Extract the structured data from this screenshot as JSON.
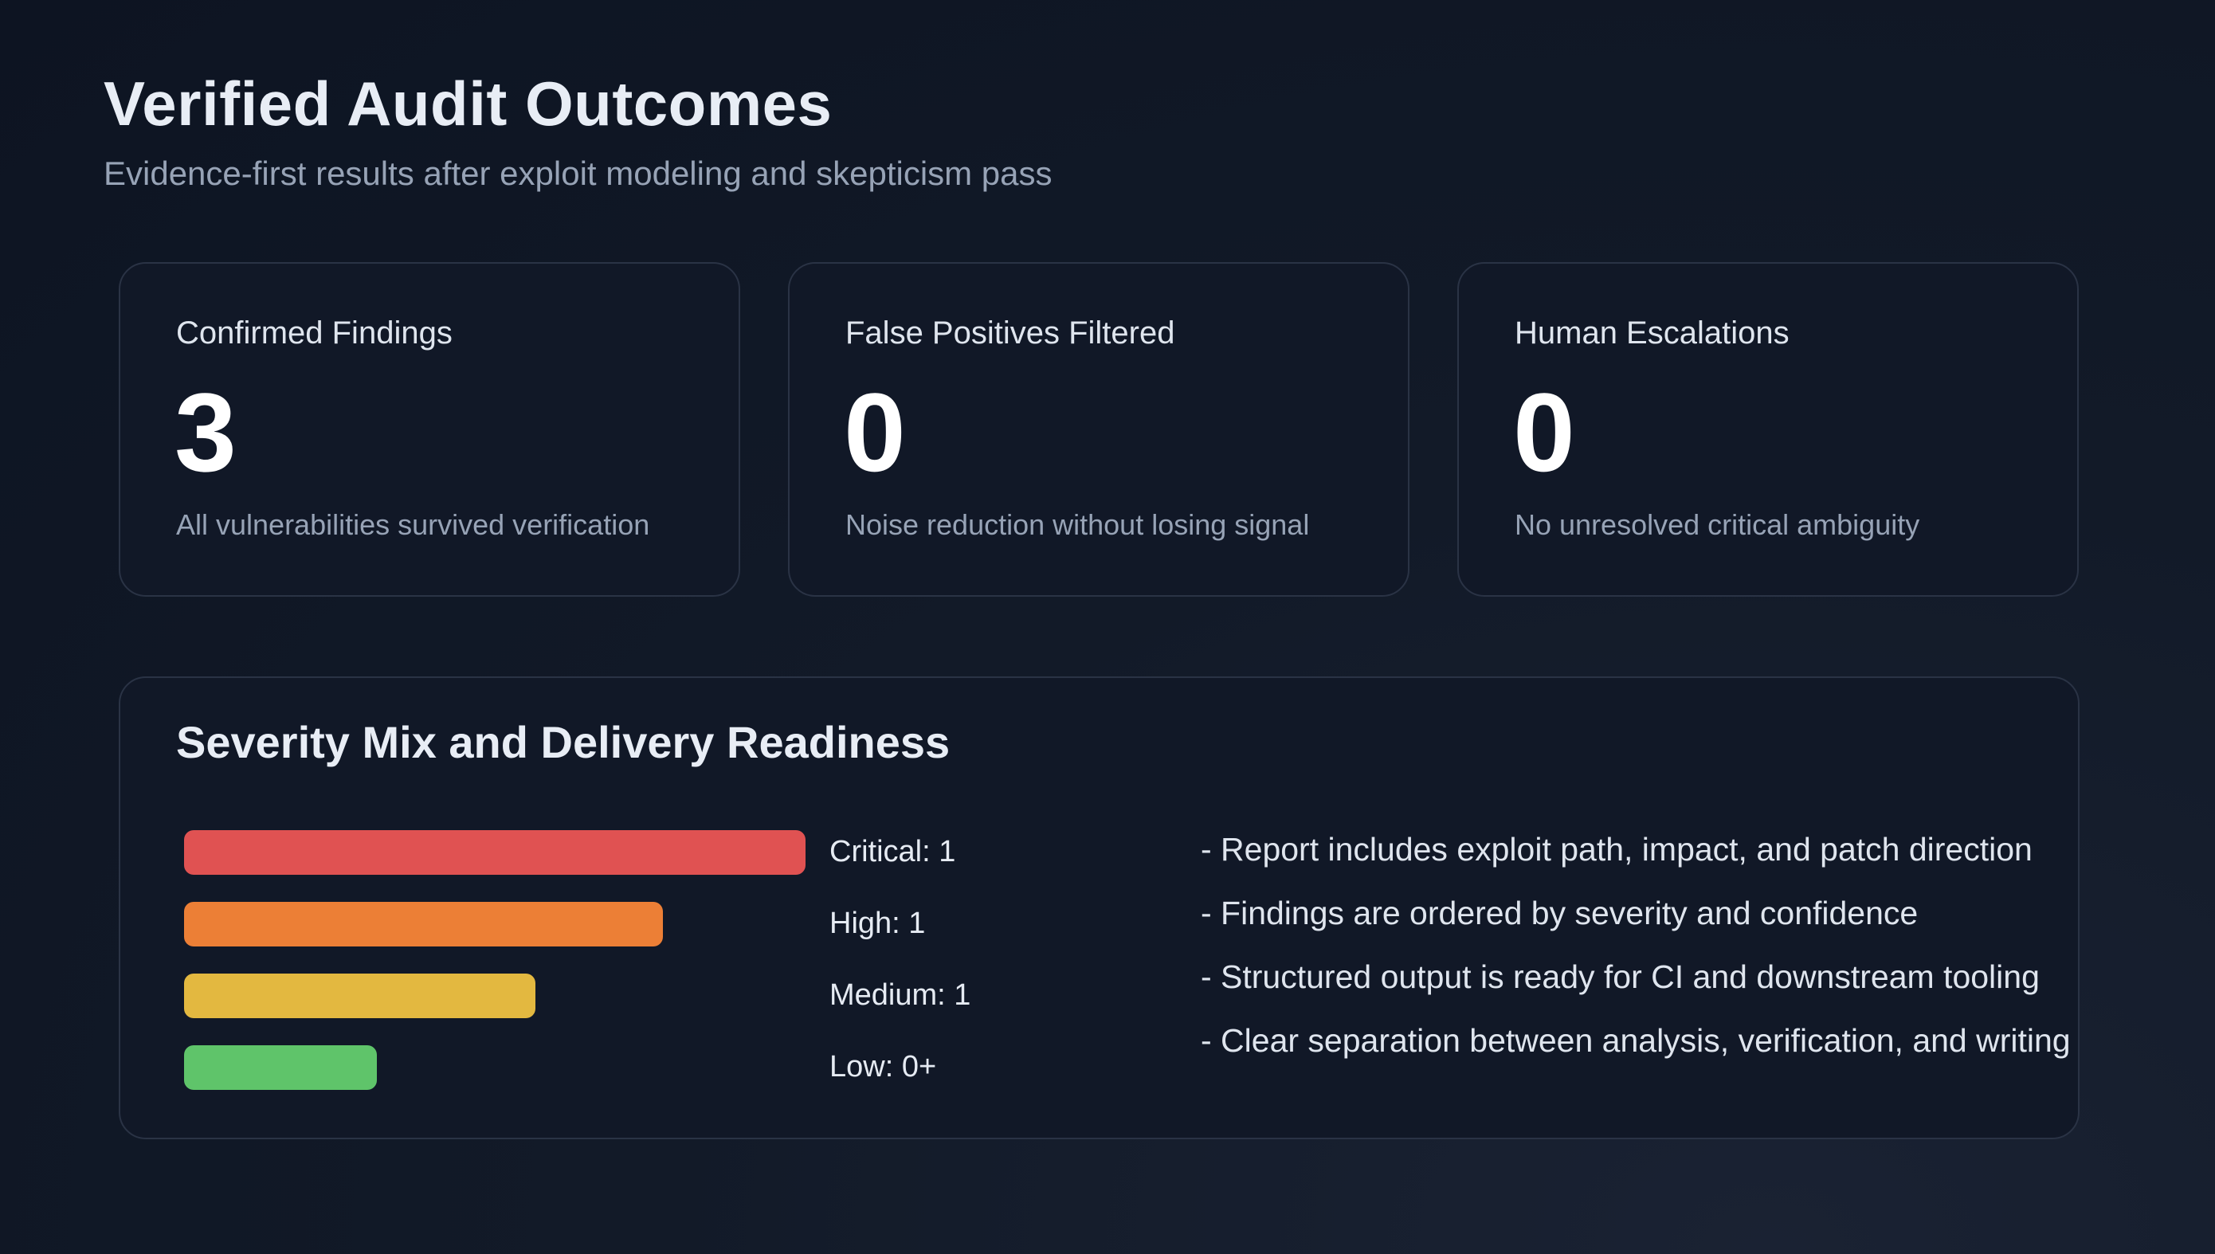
{
  "header": {
    "title": "Verified Audit Outcomes",
    "subtitle": "Evidence-first results after exploit modeling and skepticism pass"
  },
  "stats": [
    {
      "label": "Confirmed Findings",
      "value": "3",
      "description": "All vulnerabilities survived verification"
    },
    {
      "label": "False Positives Filtered",
      "value": "0",
      "description": "Noise reduction without losing signal"
    },
    {
      "label": "Human Escalations",
      "value": "0",
      "description": "No unresolved critical ambiguity"
    }
  ],
  "severity": {
    "title": "Severity Mix and Delivery Readiness",
    "bars": [
      {
        "label": "Critical: 1",
        "fill_fraction": 1.0,
        "color": "#e05252"
      },
      {
        "label": "High: 1",
        "fill_fraction": 0.77,
        "color": "#ec7f36"
      },
      {
        "label": "Medium: 1",
        "fill_fraction": 0.565,
        "color": "#e3b840"
      },
      {
        "label": "Low: 0+",
        "fill_fraction": 0.31,
        "color": "#5fc46a"
      }
    ],
    "notes": [
      "- Report includes exploit path, impact, and patch direction",
      "- Findings are ordered by severity and confidence",
      "- Structured output is ready for CI and downstream tooling",
      "- Clear separation between analysis, verification, and writing"
    ]
  }
}
